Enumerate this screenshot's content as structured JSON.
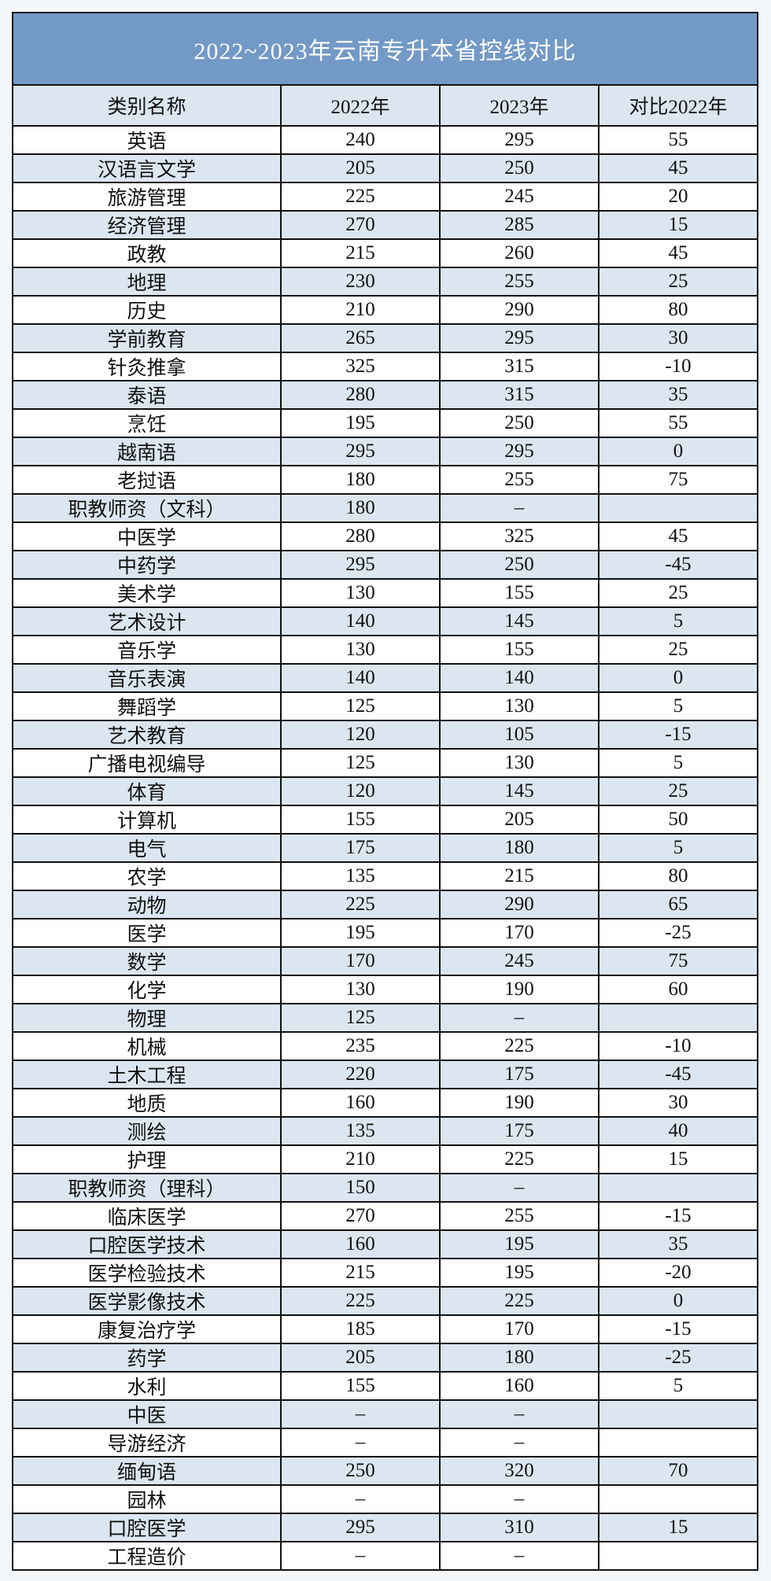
{
  "title": "2022~2023年云南专升本省控线对比",
  "colors": {
    "title_bg": "#7399c6",
    "alt_row_bg": "#dce6f1",
    "title_text": "#ffffff"
  },
  "columns": [
    "类别名称",
    "2022年",
    "2023年",
    "对比2022年"
  ],
  "rows": [
    [
      "英语",
      "240",
      "295",
      "55"
    ],
    [
      "汉语言文学",
      "205",
      "250",
      "45"
    ],
    [
      "旅游管理",
      "225",
      "245",
      "20"
    ],
    [
      "经济管理",
      "270",
      "285",
      "15"
    ],
    [
      "政教",
      "215",
      "260",
      "45"
    ],
    [
      "地理",
      "230",
      "255",
      "25"
    ],
    [
      "历史",
      "210",
      "290",
      "80"
    ],
    [
      "学前教育",
      "265",
      "295",
      "30"
    ],
    [
      "针灸推拿",
      "325",
      "315",
      "-10"
    ],
    [
      "泰语",
      "280",
      "315",
      "35"
    ],
    [
      "烹饪",
      "195",
      "250",
      "55"
    ],
    [
      "越南语",
      "295",
      "295",
      "0"
    ],
    [
      "老挝语",
      "180",
      "255",
      "75"
    ],
    [
      "职教师资（文科）",
      "180",
      "–",
      ""
    ],
    [
      "中医学",
      "280",
      "325",
      "45"
    ],
    [
      "中药学",
      "295",
      "250",
      "-45"
    ],
    [
      "美术学",
      "130",
      "155",
      "25"
    ],
    [
      "艺术设计",
      "140",
      "145",
      "5"
    ],
    [
      "音乐学",
      "130",
      "155",
      "25"
    ],
    [
      "音乐表演",
      "140",
      "140",
      "0"
    ],
    [
      "舞蹈学",
      "125",
      "130",
      "5"
    ],
    [
      "艺术教育",
      "120",
      "105",
      "-15"
    ],
    [
      "广播电视编导",
      "125",
      "130",
      "5"
    ],
    [
      "体育",
      "120",
      "145",
      "25"
    ],
    [
      "计算机",
      "155",
      "205",
      "50"
    ],
    [
      "电气",
      "175",
      "180",
      "5"
    ],
    [
      "农学",
      "135",
      "215",
      "80"
    ],
    [
      "动物",
      "225",
      "290",
      "65"
    ],
    [
      "医学",
      "195",
      "170",
      "-25"
    ],
    [
      "数学",
      "170",
      "245",
      "75"
    ],
    [
      "化学",
      "130",
      "190",
      "60"
    ],
    [
      "物理",
      "125",
      "–",
      ""
    ],
    [
      "机械",
      "235",
      "225",
      "-10"
    ],
    [
      "土木工程",
      "220",
      "175",
      "-45"
    ],
    [
      "地质",
      "160",
      "190",
      "30"
    ],
    [
      "测绘",
      "135",
      "175",
      "40"
    ],
    [
      "护理",
      "210",
      "225",
      "15"
    ],
    [
      "职教师资（理科）",
      "150",
      "–",
      ""
    ],
    [
      "临床医学",
      "270",
      "255",
      "-15"
    ],
    [
      "口腔医学技术",
      "160",
      "195",
      "35"
    ],
    [
      "医学检验技术",
      "215",
      "195",
      "-20"
    ],
    [
      "医学影像技术",
      "225",
      "225",
      "0"
    ],
    [
      "康复治疗学",
      "185",
      "170",
      "-15"
    ],
    [
      "药学",
      "205",
      "180",
      "-25"
    ],
    [
      "水利",
      "155",
      "160",
      "5"
    ],
    [
      "中医",
      "–",
      "–",
      ""
    ],
    [
      "导游经济",
      "–",
      "–",
      ""
    ],
    [
      "缅甸语",
      "250",
      "320",
      "70"
    ],
    [
      "园林",
      "–",
      "–",
      ""
    ],
    [
      "口腔医学",
      "295",
      "310",
      "15"
    ],
    [
      "工程造价",
      "–",
      "–",
      ""
    ]
  ]
}
